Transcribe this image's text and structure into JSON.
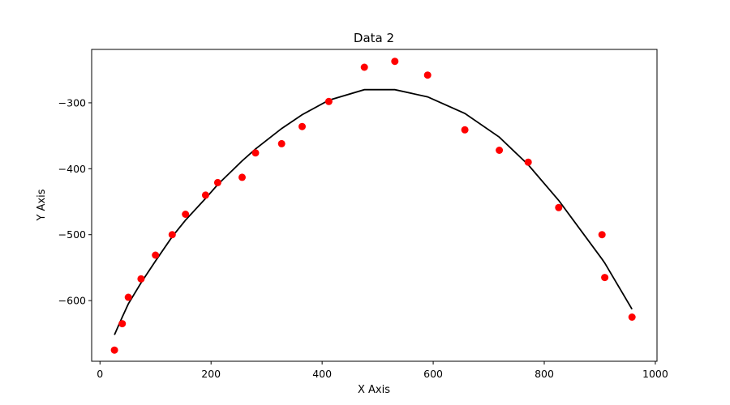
{
  "chart_data": {
    "type": "scatter",
    "title": "Data 2",
    "xlabel": "X Axis",
    "ylabel": "Y Axis",
    "xlim": [
      -15,
      1003
    ],
    "ylim": [
      -692,
      -219
    ],
    "xticks": [
      0,
      200,
      400,
      600,
      800,
      1000
    ],
    "yticks": [
      -600,
      -500,
      -400,
      -300
    ],
    "xtick_labels": [
      "0",
      "200",
      "400",
      "600",
      "800",
      "1000"
    ],
    "ytick_labels": [
      "−600",
      "−500",
      "−400",
      "−300"
    ],
    "grid": false,
    "points": {
      "color": "#ff0000",
      "x": [
        26,
        40,
        51,
        74,
        100,
        130,
        154,
        190,
        212,
        256,
        280,
        327,
        364,
        412,
        476,
        531,
        590,
        657,
        719,
        771,
        826,
        904,
        909,
        958
      ],
      "y": [
        -675,
        -635,
        -595,
        -567,
        -531,
        -500,
        -469,
        -440,
        -421,
        -413,
        -376,
        -362,
        -336,
        -298,
        -246,
        -237,
        -258,
        -341,
        -372,
        -390,
        -459,
        -500,
        -565,
        -625
      ]
    },
    "fit_line": {
      "color": "#000000",
      "x": [
        26,
        40,
        51,
        74,
        100,
        130,
        154,
        190,
        212,
        256,
        280,
        327,
        364,
        412,
        476,
        531,
        590,
        657,
        719,
        771,
        826,
        904,
        909,
        958
      ],
      "y": [
        -652,
        -625,
        -605,
        -573,
        -540,
        -503,
        -478,
        -445,
        -424,
        -388,
        -370,
        -339,
        -318,
        -296,
        -280,
        -280,
        -291,
        -316,
        -352,
        -394,
        -448,
        -537,
        -543,
        -613
      ]
    }
  }
}
